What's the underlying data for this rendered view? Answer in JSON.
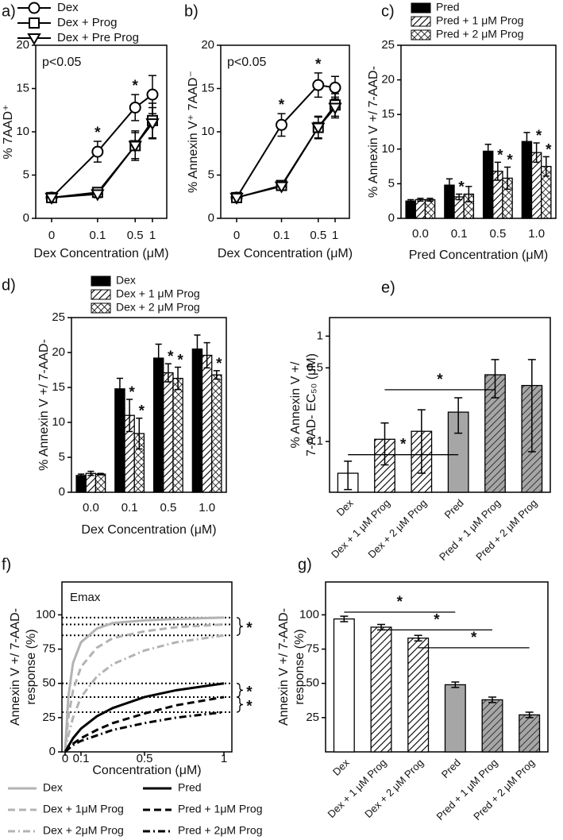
{
  "chart_data": [
    {
      "type": "line",
      "label": "a)",
      "ylabel": "% 7AAD⁺",
      "xlabel": "Dex Concentration (μM)",
      "annotation": "p<0.05",
      "x": [
        0,
        0.1,
        0.5,
        1
      ],
      "xticks": [
        0,
        0.1,
        0.5,
        1
      ],
      "ylim": [
        0,
        20
      ],
      "yticks": [
        0,
        5,
        10,
        15,
        20
      ],
      "legend": "top-outside",
      "series": [
        {
          "name": "Dex",
          "marker": "circle",
          "color": "#000000",
          "values": [
            2.4,
            7.7,
            12.8,
            14.3
          ],
          "errors": [
            0.3,
            1.2,
            1.5,
            2.2
          ]
        },
        {
          "name": "Dex + Prog",
          "marker": "square",
          "color": "#000000",
          "values": [
            2.4,
            3.0,
            8.4,
            11.3
          ],
          "errors": [
            0.3,
            0.5,
            1.7,
            2.0
          ]
        },
        {
          "name": "Dex + Pre Prog",
          "marker": "triangle",
          "color": "#000000",
          "values": [
            2.4,
            2.8,
            8.4,
            11.0
          ],
          "errors": [
            0.3,
            0.4,
            1.5,
            1.8
          ]
        }
      ],
      "star": "*",
      "stars": [
        [
          0,
          1
        ],
        [
          0,
          2
        ]
      ]
    },
    {
      "type": "line",
      "label": "b)",
      "ylabel": "% Annexin V⁺ 7AAD⁻",
      "xlabel": "Dex Concentration (μM)",
      "annotation": "p<0.05",
      "x": [
        0,
        0.1,
        0.5,
        1
      ],
      "xticks": [
        0,
        0.1,
        0.5,
        1
      ],
      "ylim": [
        0,
        20
      ],
      "yticks": [
        0,
        5,
        10,
        15,
        20
      ],
      "series": [
        {
          "marker": "circle",
          "color": "#000000",
          "values": [
            2.4,
            10.8,
            15.4,
            15.1
          ],
          "errors": [
            0.3,
            1.3,
            1.4,
            1.3
          ]
        },
        {
          "marker": "square",
          "color": "#000000",
          "values": [
            2.4,
            3.8,
            10.5,
            13.1
          ],
          "errors": [
            0.3,
            0.5,
            1.3,
            1.3
          ]
        },
        {
          "marker": "triangle",
          "color": "#000000",
          "values": [
            2.4,
            3.7,
            10.5,
            12.8
          ],
          "errors": [
            0.3,
            0.4,
            1.2,
            1.2
          ]
        }
      ],
      "star": "*",
      "stars": [
        [
          0,
          1
        ],
        [
          0,
          2
        ]
      ]
    },
    {
      "type": "bar",
      "label": "c)",
      "ylabel": "% Annexin V +/ 7-AAD-",
      "xlabel": "Pred Concentration (μM)",
      "categories": [
        "0.0",
        "0.1",
        "0.5",
        "1.0"
      ],
      "ylim": [
        0,
        25
      ],
      "yticks": [
        0,
        5,
        10,
        15,
        20,
        25
      ],
      "legend": "top-outside",
      "series": [
        {
          "name": "Pred",
          "color": "#000000",
          "pattern": "solid",
          "values": [
            2.5,
            4.8,
            9.7,
            11.1
          ],
          "errors": [
            0.2,
            0.9,
            1.0,
            1.3
          ]
        },
        {
          "name": "Pred + 1 μM Prog",
          "color": "#ffffff",
          "pattern": "diagonal",
          "values": [
            2.7,
            3.1,
            6.8,
            9.5
          ],
          "errors": [
            0.2,
            0.4,
            1.3,
            1.4
          ]
        },
        {
          "name": "Pred + 2 μM Prog",
          "color": "#ffffff",
          "pattern": "crosshatch",
          "values": [
            2.7,
            3.5,
            5.8,
            7.5
          ],
          "errors": [
            0.2,
            1.1,
            1.6,
            1.4
          ]
        }
      ],
      "star": "*",
      "stars": [
        [
          1,
          1
        ],
        [
          1,
          2
        ],
        [
          2,
          2
        ],
        [
          1,
          3
        ],
        [
          2,
          3
        ]
      ]
    },
    {
      "type": "bar",
      "label": "d)",
      "ylabel": "% Annexin V +/ 7-AAD-",
      "xlabel": "Dex Concentration (μM)",
      "categories": [
        "0.0",
        "0.1",
        "0.5",
        "1.0"
      ],
      "ylim": [
        0,
        25
      ],
      "yticks": [
        0,
        5,
        10,
        15,
        20,
        25
      ],
      "legend": "top-outside",
      "series": [
        {
          "name": "Dex",
          "color": "#000000",
          "pattern": "solid",
          "values": [
            2.4,
            14.8,
            19.2,
            20.5
          ],
          "errors": [
            0.2,
            1.5,
            2.0,
            2.0
          ]
        },
        {
          "name": "Dex + 1 μM Prog",
          "color": "#ffffff",
          "pattern": "diagonal",
          "values": [
            2.7,
            11.0,
            17.1,
            19.6
          ],
          "errors": [
            0.3,
            2.3,
            1.3,
            1.8
          ]
        },
        {
          "name": "Dex + 2 μM Prog",
          "color": "#ffffff",
          "pattern": "crosshatch",
          "values": [
            2.6,
            8.4,
            16.3,
            16.8
          ],
          "errors": [
            0.1,
            2.2,
            1.6,
            0.6
          ]
        }
      ],
      "star": "*",
      "stars": [
        [
          1,
          1
        ],
        [
          2,
          1
        ],
        [
          1,
          2
        ],
        [
          2,
          2
        ],
        [
          2,
          3
        ]
      ]
    },
    {
      "type": "bar",
      "label": "e)",
      "ylabel": [
        "% Annexin V +/",
        "7-AAD- EC₅₀ (μM)"
      ],
      "yscale": "log",
      "categories": [
        "Dex",
        "Dex + 1  μM Prog",
        "Dex + 2  μM Prog",
        "Pred",
        "Pred + 1  μM Prog",
        "Pred + 2  μM Prog"
      ],
      "values": [
        0.05,
        0.105,
        0.125,
        0.19,
        0.43,
        0.34
      ],
      "errors": [
        0.015,
        0.045,
        0.075,
        0.07,
        0.17,
        0.26
      ],
      "colors": [
        "#ffffff",
        "#ffffff",
        "#ffffff",
        "#a6a6a6",
        "#a6a6a6",
        "#a6a6a6"
      ],
      "patterns": [
        "solid",
        "diagonal",
        "diagonal",
        "solid",
        "diagonal",
        "diagonal"
      ],
      "ylim": [
        0.033,
        1.5
      ],
      "yticks": [
        0.1,
        0.5,
        1
      ],
      "star": "*",
      "brackets": [
        {
          "from": 0,
          "to": 3,
          "y": 0.075
        },
        {
          "from": 1,
          "to": 4,
          "y": 0.31
        }
      ]
    },
    {
      "type": "line",
      "label": "f)",
      "ylabel": [
        "Annexin V +/ 7-AAD-",
        "response (%)"
      ],
      "xlabel": "Concentration (μM)",
      "emax_label": "Emax",
      "x": [
        0,
        0.02,
        0.05,
        0.1,
        0.2,
        0.3,
        0.5,
        0.7,
        1
      ],
      "xlim": [
        -0.02,
        1.05
      ],
      "xticks": [
        0,
        0.1,
        0.5,
        1
      ],
      "ylim": [
        0,
        124
      ],
      "yticks": [
        0,
        25,
        50,
        75,
        100
      ],
      "legend": "bottom-outside",
      "series": [
        {
          "name": "Dex",
          "color": "#b3b3b3",
          "dash": "solid",
          "values": [
            0,
            40,
            65,
            80,
            90,
            94,
            96,
            97,
            98
          ],
          "emax": 98
        },
        {
          "name": "Dex + 1μM Prog",
          "color": "#b3b3b3",
          "dash": "dash",
          "values": [
            0,
            25,
            45,
            62,
            76,
            83,
            88,
            91,
            93
          ],
          "emax": 93
        },
        {
          "name": "Dex + 2μM Prog",
          "color": "#b3b3b3",
          "dash": "dashdot",
          "values": [
            0,
            12,
            25,
            40,
            55,
            64,
            74,
            80,
            85
          ],
          "emax": 85
        },
        {
          "name": "Pred",
          "color": "#000000",
          "dash": "solid",
          "values": [
            0,
            4,
            10,
            17,
            26,
            32,
            40,
            45,
            50
          ],
          "emax": 50
        },
        {
          "name": "Pred + 1μM Prog",
          "color": "#000000",
          "dash": "dash",
          "values": [
            0,
            3,
            6,
            10,
            16,
            21,
            28,
            34,
            40
          ],
          "emax": 40
        },
        {
          "name": "Pred + 2μM Prog",
          "color": "#000000",
          "dash": "dashdot",
          "values": [
            0,
            2,
            5,
            8,
            12,
            16,
            21,
            25,
            29
          ],
          "emax": 29
        }
      ],
      "star": "*",
      "braces": [
        [
          0,
          2
        ],
        [
          3,
          4
        ],
        [
          4,
          5
        ]
      ]
    },
    {
      "type": "bar",
      "label": "g)",
      "ylabel": [
        "Annexin V +/ 7-AAD-",
        "response (%)"
      ],
      "categories": [
        "Dex",
        "Dex + 1  μM Prog",
        "Dex + 2  μM Prog",
        "Pred",
        "Pred + 1  μM Prog",
        "Pred + 2  μM Prog"
      ],
      "values": [
        97,
        91,
        83,
        49,
        38,
        27
      ],
      "errors": [
        2,
        2,
        2,
        2,
        2,
        2
      ],
      "colors": [
        "#ffffff",
        "#ffffff",
        "#ffffff",
        "#a6a6a6",
        "#a6a6a6",
        "#a6a6a6"
      ],
      "patterns": [
        "solid",
        "diagonal",
        "diagonal",
        "solid",
        "diagonal",
        "diagonal"
      ],
      "ylim": [
        0,
        124
      ],
      "yticks": [
        25,
        50,
        75,
        100
      ],
      "star": "*",
      "brackets": [
        {
          "from": 0,
          "to": 3,
          "y": 102
        },
        {
          "from": 1,
          "to": 4,
          "y": 89
        },
        {
          "from": 2,
          "to": 5,
          "y": 76
        }
      ]
    }
  ]
}
